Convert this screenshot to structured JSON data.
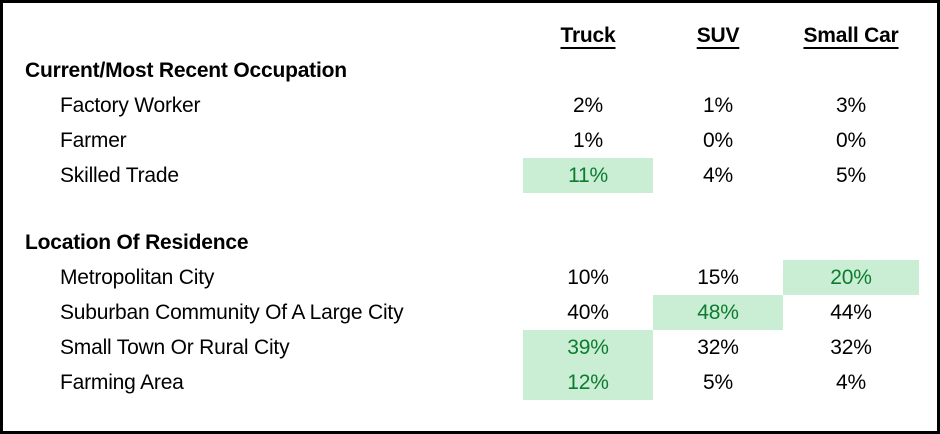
{
  "table": {
    "columns": [
      {
        "label": "Truck"
      },
      {
        "label": "SUV"
      },
      {
        "label": "Small Car"
      }
    ],
    "sections": [
      {
        "heading": "Current/Most Recent Occupation",
        "rows": [
          {
            "label": "Factory Worker",
            "values": [
              "2%",
              "1%",
              "3%"
            ],
            "highlight": [
              false,
              false,
              false
            ]
          },
          {
            "label": "Farmer",
            "values": [
              "1%",
              "0%",
              "0%"
            ],
            "highlight": [
              false,
              false,
              false
            ]
          },
          {
            "label": "Skilled Trade",
            "values": [
              "11%",
              "4%",
              "5%"
            ],
            "highlight": [
              true,
              false,
              false
            ]
          }
        ]
      },
      {
        "heading": "Location Of Residence",
        "rows": [
          {
            "label": "Metropolitan City",
            "values": [
              "10%",
              "15%",
              "20%"
            ],
            "highlight": [
              false,
              false,
              true
            ]
          },
          {
            "label": "Suburban Community Of A Large City",
            "values": [
              "40%",
              "48%",
              "44%"
            ],
            "highlight": [
              false,
              true,
              false
            ]
          },
          {
            "label": "Small Town Or Rural City",
            "values": [
              "39%",
              "32%",
              "32%"
            ],
            "highlight": [
              true,
              false,
              false
            ]
          },
          {
            "label": "Farming Area",
            "values": [
              "12%",
              "5%",
              "4%"
            ],
            "highlight": [
              true,
              false,
              false
            ]
          }
        ]
      }
    ],
    "colors": {
      "highlight_bg": "#c9eed3",
      "highlight_text": "#0e7b31",
      "frame_border": "#000000",
      "text": "#000000"
    }
  }
}
